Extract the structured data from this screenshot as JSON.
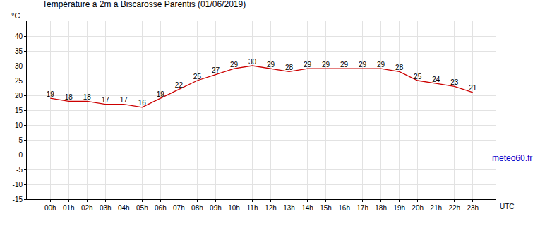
{
  "chart_data": {
    "type": "line",
    "title": "Température à 2m à Biscarosse Parentis (01/06/2019)",
    "annotations": [
      "meteo60.fr"
    ],
    "x_label": "UTC",
    "y_label": "°C",
    "categories": [
      "00h",
      "01h",
      "02h",
      "03h",
      "04h",
      "05h",
      "06h",
      "07h",
      "08h",
      "09h",
      "10h",
      "11h",
      "12h",
      "13h",
      "14h",
      "15h",
      "16h",
      "17h",
      "18h",
      "19h",
      "20h",
      "21h",
      "22h",
      "23h"
    ],
    "values": [
      19,
      18,
      18,
      17,
      17,
      16,
      19,
      22,
      25,
      27,
      29,
      30,
      29,
      28,
      29,
      29,
      29,
      29,
      29,
      28,
      25,
      24,
      23,
      21
    ],
    "color": "#cc0000",
    "ylim": [
      -15,
      45
    ],
    "yticks": [
      -15,
      -10,
      -5,
      0,
      5,
      10,
      15,
      20,
      25,
      30,
      35,
      40
    ],
    "grid": true,
    "data_labels": true
  }
}
